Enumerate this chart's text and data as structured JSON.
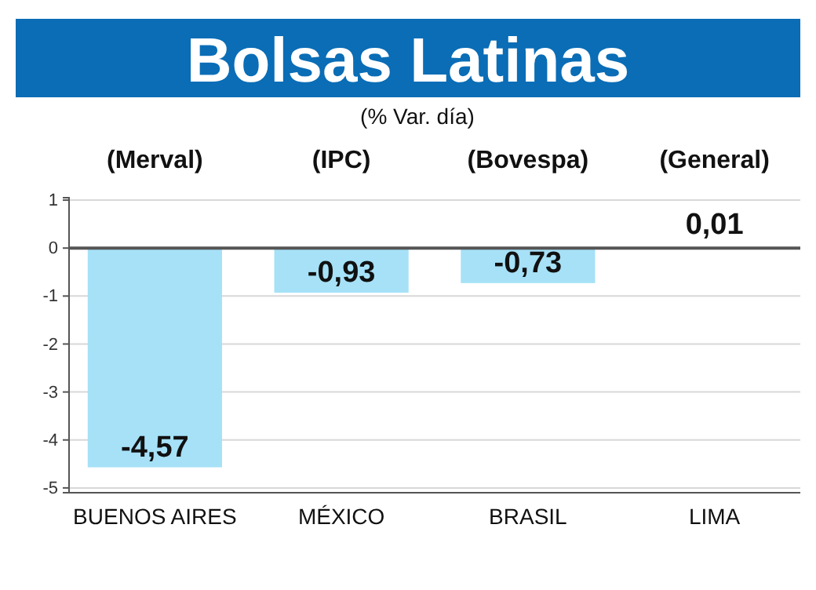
{
  "chart_data": {
    "type": "bar",
    "title": "Bolsas Latinas",
    "subtitle": "(% Var. día)",
    "categories": [
      "BUENOS AIRES",
      "MÉXICO",
      "BRASIL",
      "LIMA"
    ],
    "values": [
      -4.57,
      -0.93,
      -0.73,
      0.01
    ],
    "value_labels": [
      "-4,57",
      "-0,93",
      "-0,73",
      "0,01"
    ],
    "color": "#a6e1f7",
    "ylim": [
      -5.1,
      1.05
    ],
    "yticks": [
      1,
      0,
      -1,
      -2,
      -3,
      -4,
      -5
    ],
    "grid": "y",
    "annotations": [
      "(Merval)",
      "(IPC)",
      "(Bovespa)",
      "(General)"
    ]
  }
}
